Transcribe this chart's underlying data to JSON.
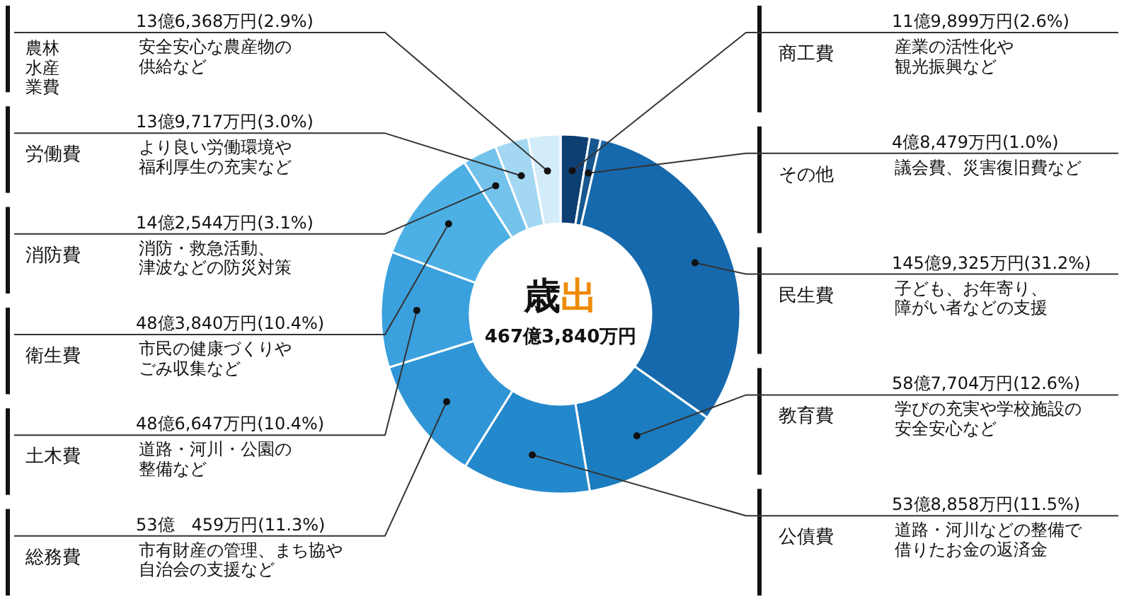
{
  "chart_data": {
    "type": "donut",
    "title": "歳出",
    "subtitle": "467億3,840万円",
    "categories": [
      "商工費",
      "その他",
      "民生費",
      "教育費",
      "公債費",
      "総務費",
      "土木費",
      "衛生費",
      "消防費",
      "労働費",
      "農林水産業費"
    ],
    "values": [
      2.6,
      1.0,
      31.2,
      12.6,
      11.5,
      11.3,
      10.4,
      10.4,
      3.1,
      3.0,
      2.9
    ],
    "value_labels": [
      "11億9,899万円(2.6%)",
      "4億8,479万円(1.0%)",
      "145億9,325万円(31.2%)",
      "58億7,704万円(12.6%)",
      "53億8,858万円(11.5%)",
      "53億　459万円(11.3%)",
      "48億6,647万円(10.4%)",
      "48億3,840万円(10.4%)",
      "14億2,544万円(3.1%)",
      "13億9,717万円(3.0%)",
      "13億6,368万円(2.9%)"
    ],
    "colors": [
      "#0d3f73",
      "#17578f",
      "#1769ad",
      "#1b7cbf",
      "#2489cc",
      "#2f95d6",
      "#3ba0de",
      "#4db0e5",
      "#72c2ec",
      "#a3d7f2",
      "#d3ecf9"
    ],
    "annotations": [
      "産業の活性化や観光振興など",
      "議会費、災害復旧費など",
      "子ども、お年寄り、障がい者などの支援",
      "学びの充実や学校施設の安全安心など",
      "道路・河川などの整備で借りたお金の返済金",
      "市有財産の管理、まち協や自治会の支援など",
      "道路・河川・公園の整備など",
      "市民の健康づくりやごみ収集など",
      "消防・救急活動、津波などの防災対策",
      "より良い労働環境や福利厚生の充実など",
      "安全安心な農産物の供給など"
    ]
  }
}
